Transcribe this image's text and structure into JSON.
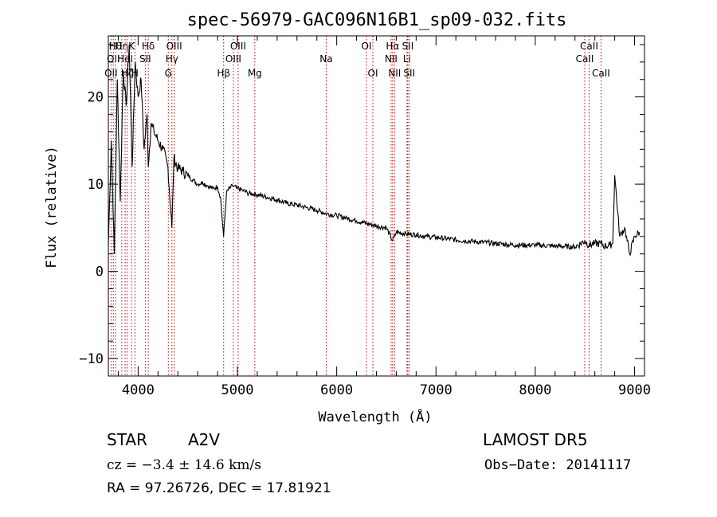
{
  "chart_data": {
    "type": "line",
    "title": "spec-56979-GAC096N16B1_sp09-032.fits",
    "xlabel": "Wavelength (Å)",
    "ylabel": "Flux (relative)",
    "xlim": [
      3700,
      9100
    ],
    "ylim": [
      -12,
      27
    ],
    "xticks": [
      4000,
      5000,
      6000,
      7000,
      8000,
      9000
    ],
    "yticks": [
      -10,
      0,
      10,
      20
    ],
    "line_color": "#000000",
    "marker_color": "#cc0000",
    "series": [
      {
        "x": [
          3700,
          3730,
          3760,
          3790,
          3820,
          3850,
          3880,
          3910,
          3940,
          3970,
          4000,
          4030,
          4060,
          4090,
          4102,
          4130,
          4160,
          4200,
          4250,
          4300,
          4340,
          4360,
          4400,
          4450,
          4500,
          4550,
          4600,
          4650,
          4700,
          4750,
          4800,
          4830,
          4861,
          4890,
          4920,
          4950,
          5000,
          5050,
          5100,
          5200,
          5300,
          5400,
          5500,
          5600,
          5700,
          5800,
          5900,
          6000,
          6100,
          6200,
          6300,
          6400,
          6500,
          6563,
          6600,
          6700,
          6800,
          6900,
          7000,
          7200,
          7400,
          7600,
          7800,
          8000,
          8200,
          8400,
          8498,
          8542,
          8600,
          8662,
          8700,
          8750,
          8780,
          8800,
          8850,
          8900,
          8950,
          9000,
          9050
        ],
        "y": [
          3,
          15,
          2,
          22,
          8,
          23,
          19,
          26,
          12,
          24,
          20,
          22,
          14,
          18,
          12,
          17,
          16,
          15,
          14,
          12,
          5,
          13,
          11.8,
          11.5,
          11,
          10.5,
          10,
          10.2,
          9.8,
          9.5,
          9.7,
          8.5,
          4,
          9,
          9.5,
          9.8,
          9.5,
          9.3,
          9,
          8.8,
          8.5,
          8.2,
          7.8,
          7.6,
          7.3,
          7,
          6.6,
          6.4,
          6.1,
          5.8,
          5.5,
          5.2,
          5,
          3.5,
          4.5,
          4.3,
          4.2,
          4,
          3.9,
          3.6,
          3.4,
          3.2,
          3,
          3,
          2.9,
          2.8,
          3.5,
          3,
          3.2,
          3.2,
          2.9,
          3,
          3.2,
          11,
          4,
          5,
          2,
          4,
          4.5
        ]
      }
    ],
    "line_markers": [
      {
        "x": 3727,
        "row": 2,
        "label": "OII"
      },
      {
        "x": 3750,
        "row": 1,
        "label": "OII"
      },
      {
        "x": 3771,
        "row": 0,
        "label": "Hθ"
      },
      {
        "x": 3835,
        "row": 0,
        "label": "Hη"
      },
      {
        "x": 3869,
        "row": 1,
        "label": "HeI"
      },
      {
        "x": 3889,
        "row": 2,
        "label": "Hζ"
      },
      {
        "x": 3934,
        "row": 0,
        "label": "K"
      },
      {
        "x": 3968,
        "row": 2,
        "label": "H"
      },
      {
        "x": 4072,
        "row": 1,
        "label": "SII"
      },
      {
        "x": 4102,
        "row": 0,
        "label": "Hδ"
      },
      {
        "x": 4304,
        "row": 2,
        "label": "G"
      },
      {
        "x": 4340,
        "row": 1,
        "label": "Hγ"
      },
      {
        "x": 4363,
        "row": 0,
        "label": "OIII"
      },
      {
        "x": 4861,
        "row": 2,
        "label": "Hβ"
      },
      {
        "x": 4959,
        "row": 1,
        "label": "OIII"
      },
      {
        "x": 5007,
        "row": 0,
        "label": "OIII"
      },
      {
        "x": 5175,
        "row": 2,
        "label": "Mg"
      },
      {
        "x": 5894,
        "row": 1,
        "label": "Na"
      },
      {
        "x": 6300,
        "row": 0,
        "label": "OI"
      },
      {
        "x": 6364,
        "row": 2,
        "label": "OI"
      },
      {
        "x": 6548,
        "row": 1,
        "label": "NII"
      },
      {
        "x": 6563,
        "row": 0,
        "label": "Hα"
      },
      {
        "x": 6583,
        "row": 2,
        "label": "NII"
      },
      {
        "x": 6708,
        "row": 1,
        "label": "Li"
      },
      {
        "x": 6716,
        "row": 0,
        "label": "SII"
      },
      {
        "x": 6731,
        "row": 2,
        "label": "SII"
      },
      {
        "x": 8498,
        "row": 1,
        "label": "CaII"
      },
      {
        "x": 8542,
        "row": 0,
        "label": "CaII"
      },
      {
        "x": 8662,
        "row": 2,
        "label": "CaII"
      }
    ]
  },
  "info": {
    "class_label": "STAR",
    "subclass": "A2V",
    "survey": "LAMOST DR5",
    "cz": "cz = −3.4 ± 14.6 km/s",
    "obs_date": "Obs−Date: 20141117",
    "radec": "RA =  97.26726, DEC =  17.81921"
  }
}
